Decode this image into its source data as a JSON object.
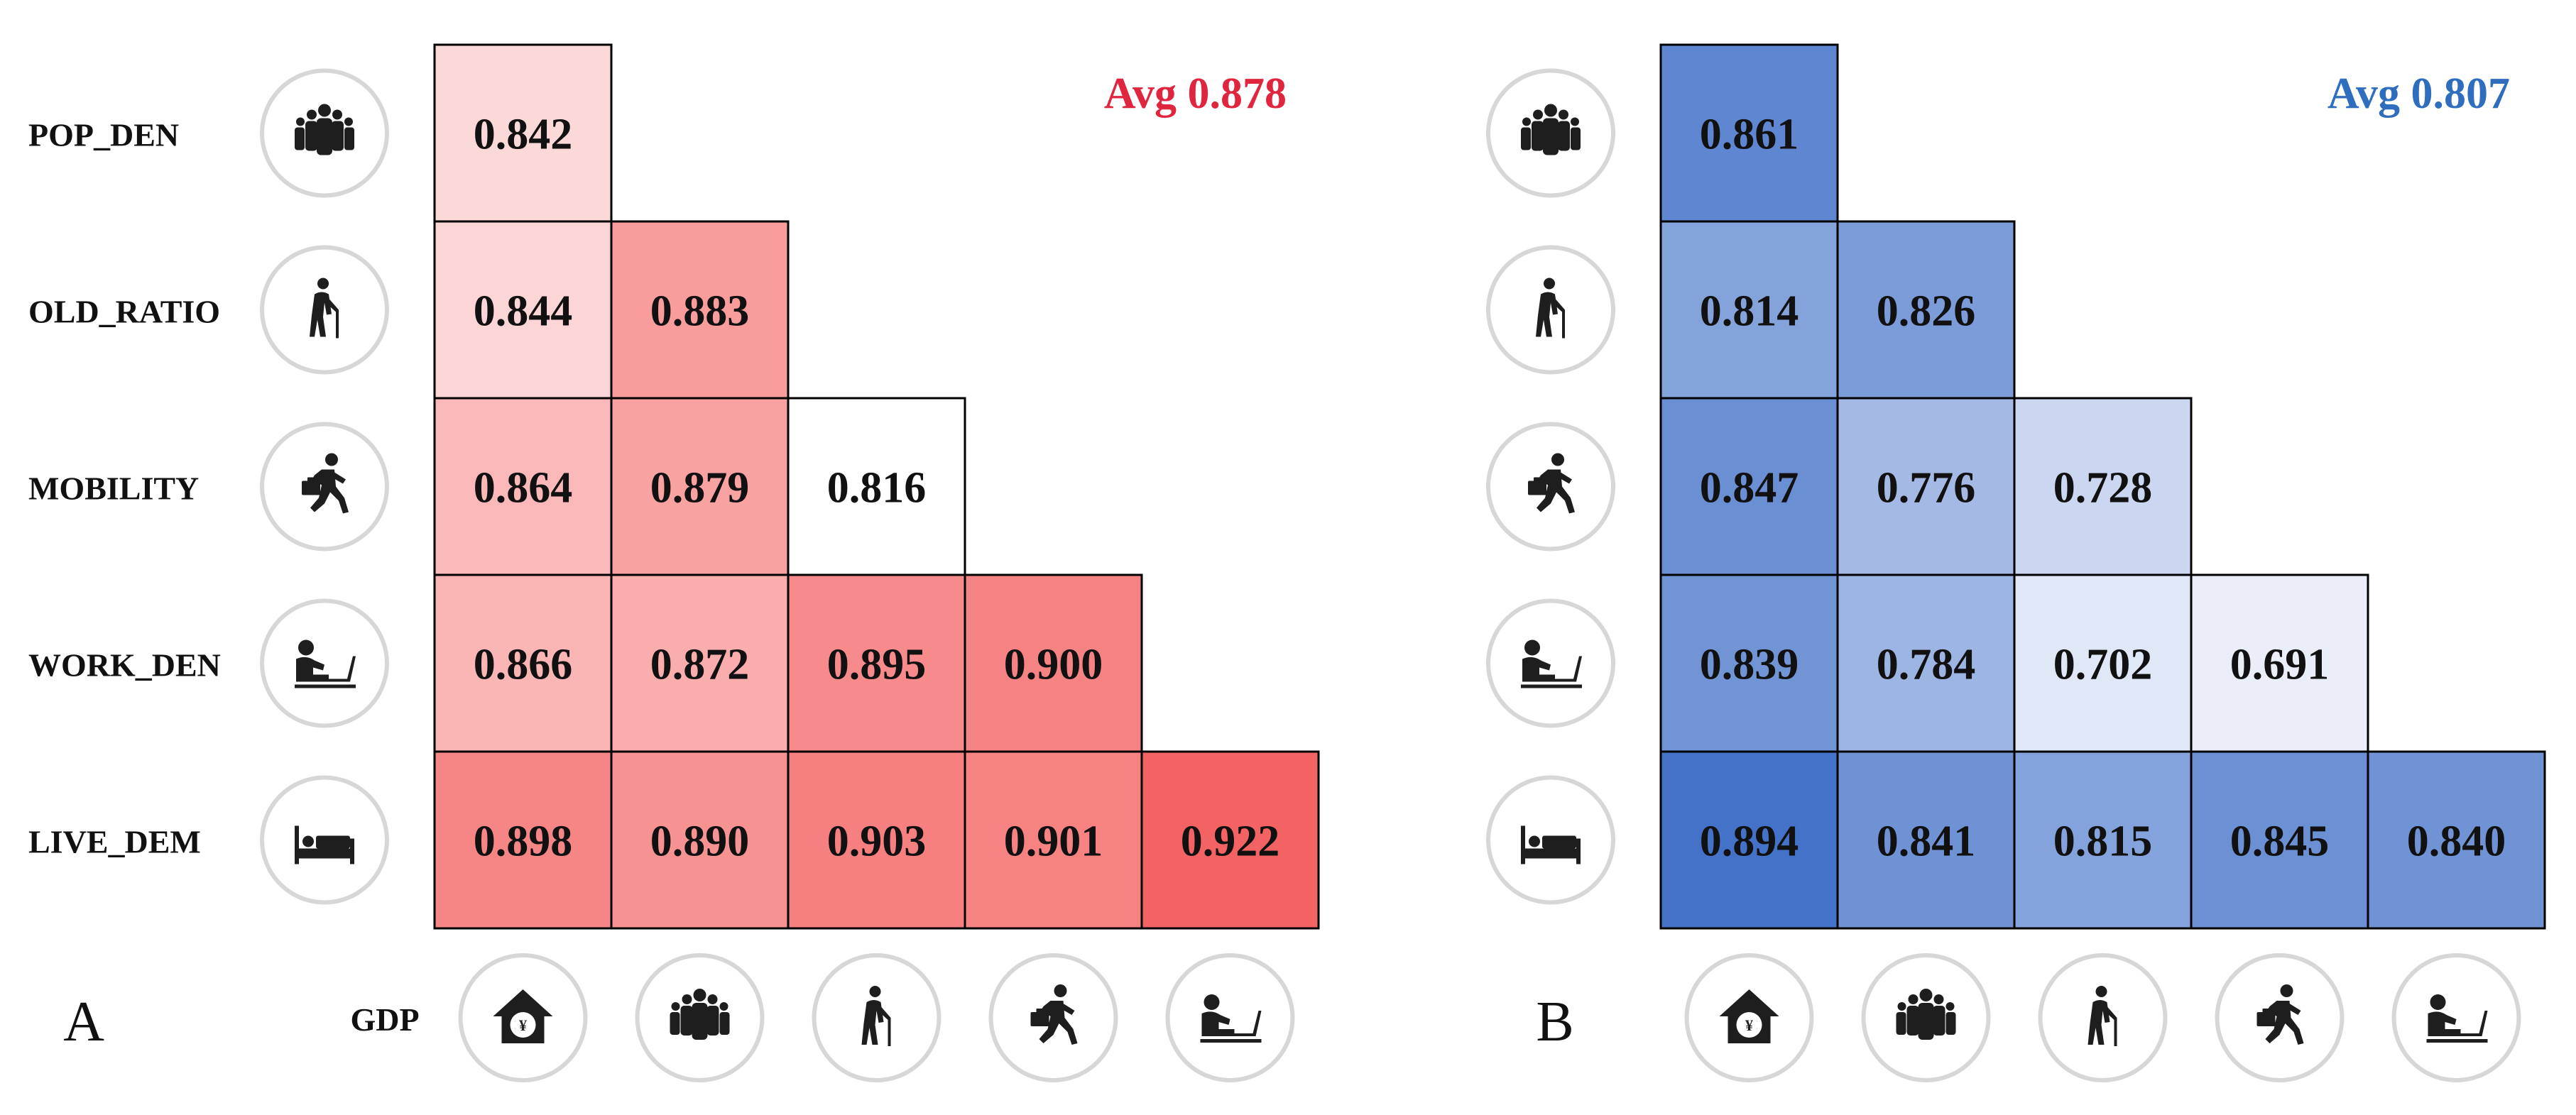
{
  "chart_data": [
    {
      "type": "heatmap",
      "panel_label": "A",
      "avg_label": "Avg 0.878",
      "avg_color": "#e0263f",
      "color_scale": {
        "low": "#ffffff",
        "high": "#f46363",
        "vmin": 0.816,
        "vmax": 0.922
      },
      "x_label": "GDP",
      "x_icons": [
        "house-yen-icon",
        "crowd-icon",
        "elderly-cane-icon",
        "running-commuter-icon",
        "desk-worker-icon"
      ],
      "rows": [
        {
          "label": "POP_DEN",
          "icon": "crowd-icon",
          "values": [
            0.842
          ]
        },
        {
          "label": "OLD_RATIO",
          "icon": "elderly-cane-icon",
          "values": [
            0.844,
            0.883
          ]
        },
        {
          "label": "MOBILITY",
          "icon": "running-commuter-icon",
          "values": [
            0.864,
            0.879,
            0.816
          ]
        },
        {
          "label": "WORK_DEN",
          "icon": "desk-worker-icon",
          "values": [
            0.866,
            0.872,
            0.895,
            0.9
          ]
        },
        {
          "label": "LIVE_DEM",
          "icon": "bed-icon",
          "values": [
            0.898,
            0.89,
            0.903,
            0.901,
            0.922
          ]
        }
      ]
    },
    {
      "type": "heatmap",
      "panel_label": "B",
      "avg_label": "Avg 0.807",
      "avg_color": "#2f6ebe",
      "color_scale": {
        "low": "#e9eef9",
        "high": "#4472c8",
        "vmin": 0.691,
        "vmax": 0.894
      },
      "x_label": "",
      "x_icons": [
        "house-yen-icon",
        "crowd-icon",
        "elderly-cane-icon",
        "running-commuter-icon",
        "desk-worker-icon"
      ],
      "rows": [
        {
          "label": "",
          "icon": "crowd-icon",
          "values": [
            0.861
          ]
        },
        {
          "label": "",
          "icon": "elderly-cane-icon",
          "values": [
            0.814,
            0.826
          ]
        },
        {
          "label": "",
          "icon": "running-commuter-icon",
          "values": [
            0.847,
            0.776,
            0.728
          ]
        },
        {
          "label": "",
          "icon": "desk-worker-icon",
          "values": [
            0.839,
            0.784,
            0.702,
            0.691
          ]
        },
        {
          "label": "",
          "icon": "bed-icon",
          "values": [
            0.894,
            0.841,
            0.815,
            0.845,
            0.84
          ]
        }
      ]
    }
  ]
}
